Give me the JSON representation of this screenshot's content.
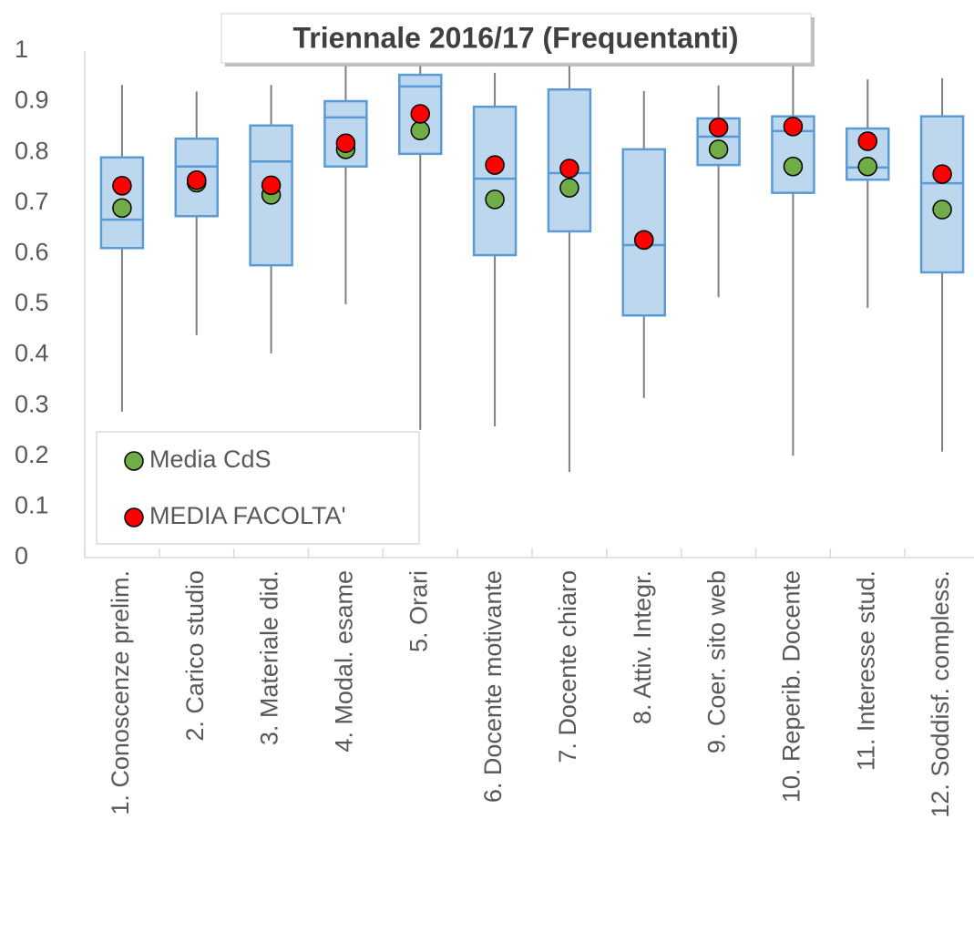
{
  "chart_data": {
    "type": "box",
    "title": "Triennale 2016/17 (Frequentanti)",
    "categories": [
      "1. Conoscenze prelim.",
      "2. Carico studio",
      "3. Materiale did.",
      "4. Modal. esame",
      "5. Orari",
      "6. Docente motivante",
      "7. Docente chiaro",
      "8. Attiv. Integr.",
      "9. Coer. sito web",
      "10. Reperib. Docente",
      "11. Interesse stud.",
      "12. Soddisf. compless."
    ],
    "boxes": [
      {
        "whislo": 0.288,
        "q1": 0.611,
        "med": 0.667,
        "q3": 0.79,
        "whishi": 0.933
      },
      {
        "whislo": 0.439,
        "q1": 0.674,
        "med": 0.772,
        "q3": 0.827,
        "whishi": 0.92
      },
      {
        "whislo": 0.403,
        "q1": 0.577,
        "med": 0.782,
        "q3": 0.853,
        "whishi": 0.933
      },
      {
        "whislo": 0.5,
        "q1": 0.772,
        "med": 0.869,
        "q3": 0.901,
        "whishi": 0.97
      },
      {
        "whislo": 0.252,
        "q1": 0.797,
        "med": 0.93,
        "q3": 0.953,
        "whishi": 0.97
      },
      {
        "whislo": 0.259,
        "q1": 0.597,
        "med": 0.748,
        "q3": 0.89,
        "whishi": 0.957
      },
      {
        "whislo": 0.169,
        "q1": 0.644,
        "med": 0.759,
        "q3": 0.924,
        "whishi": 0.97
      },
      {
        "whislo": 0.315,
        "q1": 0.478,
        "med": 0.617,
        "q3": 0.806,
        "whishi": 0.921
      },
      {
        "whislo": 0.514,
        "q1": 0.775,
        "med": 0.831,
        "q3": 0.867,
        "whishi": 0.932
      },
      {
        "whislo": 0.201,
        "q1": 0.72,
        "med": 0.842,
        "q3": 0.871,
        "whishi": 0.97
      },
      {
        "whislo": 0.493,
        "q1": 0.746,
        "med": 0.77,
        "q3": 0.847,
        "whishi": 0.944
      },
      {
        "whislo": 0.209,
        "q1": 0.563,
        "med": 0.739,
        "q3": 0.871,
        "whishi": 0.946
      }
    ],
    "box_color": "#bdd7ee",
    "box_edge_color": "#5b9bd5",
    "whisker_color": "#7f7f7f",
    "series": [
      {
        "name": "Media CdS",
        "color": "#70ad47",
        "values": [
          0.69,
          0.74,
          0.716,
          0.806,
          0.843,
          0.707,
          0.73,
          0.627,
          0.806,
          0.772,
          0.772,
          0.687
        ]
      },
      {
        "name": "MEDIA FACOLTA'",
        "color": "#ff0000",
        "values": [
          0.734,
          0.745,
          0.735,
          0.818,
          0.876,
          0.775,
          0.768,
          0.627,
          0.849,
          0.851,
          0.822,
          0.757
        ]
      }
    ],
    "ylim": [
      0,
      1
    ],
    "yticks": [
      0,
      0.1,
      0.2,
      0.3,
      0.4,
      0.5,
      0.6,
      0.7,
      0.8,
      0.9,
      1
    ],
    "grid": false,
    "legend": "lower left"
  }
}
